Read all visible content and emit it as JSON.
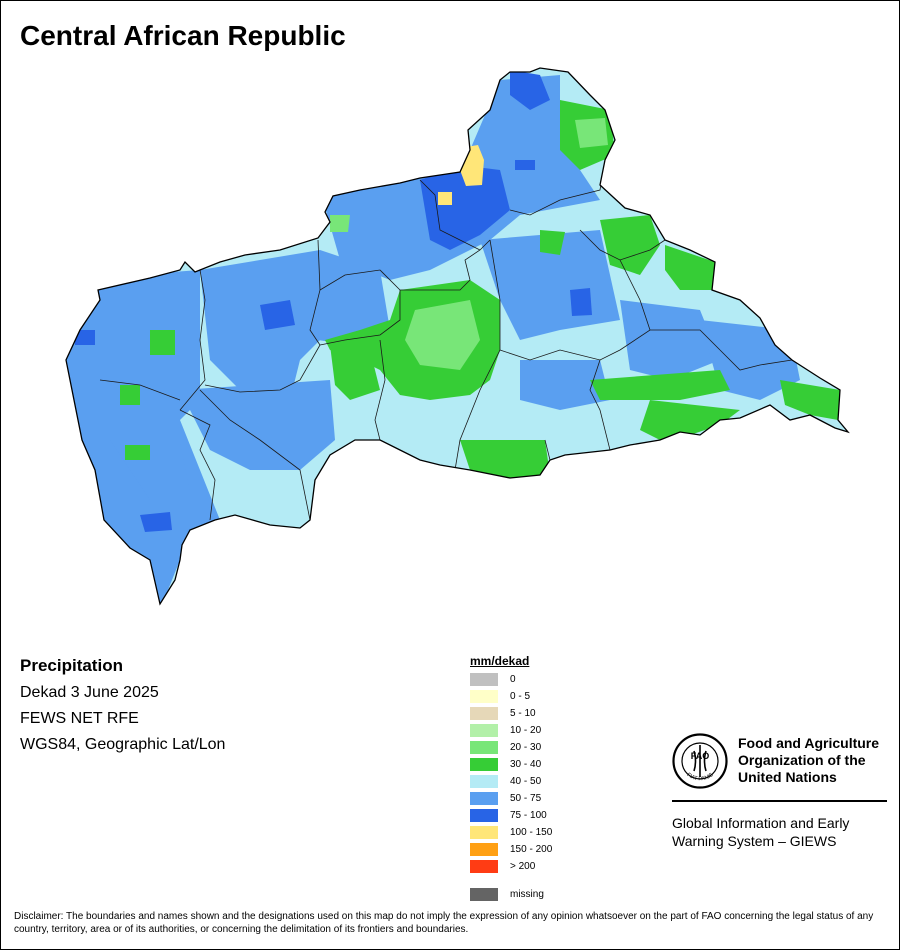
{
  "title": "Central African Republic",
  "info": {
    "heading": "Precipitation",
    "period": "Dekad 3 June 2025",
    "source": "FEWS NET RFE",
    "projection": "WGS84, Geographic Lat/Lon"
  },
  "legend": {
    "unit": "mm/dekad",
    "classes": [
      {
        "label": "0",
        "color": "#c0c0c0"
      },
      {
        "label": "0 - 5",
        "color": "#ffffc8"
      },
      {
        "label": "5 - 10",
        "color": "#e6d8b8"
      },
      {
        "label": "10 - 20",
        "color": "#b2f0a8"
      },
      {
        "label": "20 - 30",
        "color": "#78e678"
      },
      {
        "label": "30 - 40",
        "color": "#36cd36"
      },
      {
        "label": "40 - 50",
        "color": "#b4ebf5"
      },
      {
        "label": "50 - 75",
        "color": "#5a9ff0"
      },
      {
        "label": "75 - 100",
        "color": "#2864e6"
      },
      {
        "label": "100 - 150",
        "color": "#ffe678"
      },
      {
        "label": "150 - 200",
        "color": "#ffa014"
      },
      {
        "label": "> 200",
        "color": "#ff3c14"
      }
    ],
    "missing": {
      "label": "missing",
      "color": "#646464"
    }
  },
  "organization": {
    "name_line1": "Food and Agriculture",
    "name_line2": "Organization of the",
    "name_line3": "United Nations",
    "system_line1": "Global Information and Early",
    "system_line2": "Warning System – GIEWS",
    "logo_text": "FAO",
    "logo_motto": "FIAT PANIS"
  },
  "disclaimer": "Disclaimer: The boundaries and names shown and the designations used on this map do not imply the expression of any opinion whatsoever on the part of FAO concerning the legal status of any country, territory, area or of its authorities, or concerning the delimitation of its frontiers and boundaries."
}
